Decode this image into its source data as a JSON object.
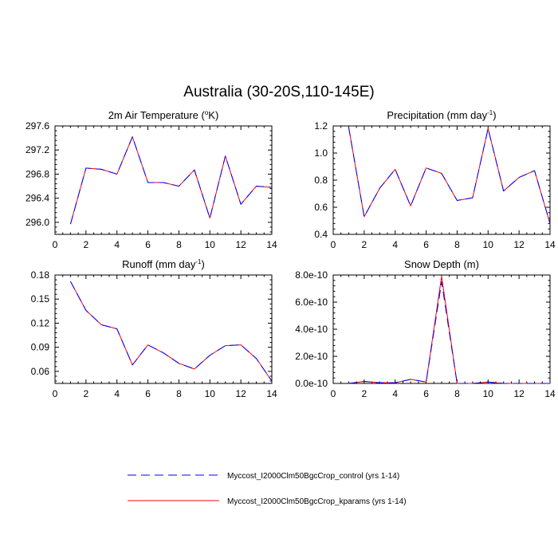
{
  "figure": {
    "title": "Australia (30-20S,110-145E)",
    "legend": [
      {
        "label": "Myccost_I2000Clm50BgcCrop_control (yrs 1-14)",
        "color": "#0000ff",
        "dash": "dashed"
      },
      {
        "label": "Myccost_I2000Clm50BgcCrop_kparams (yrs 1-14)",
        "color": "#ff0000",
        "dash": "solid"
      }
    ]
  },
  "chart_data": [
    {
      "type": "line",
      "title": "2m Air Temperature (",
      "title_sup": "o",
      "title_post": "K)",
      "xlim": [
        0,
        14
      ],
      "ylim": [
        295.8,
        297.6
      ],
      "xticks": [
        "0",
        "2",
        "4",
        "6",
        "8",
        "10",
        "12",
        "14"
      ],
      "yticks": [
        "296.0",
        "296.4",
        "296.8",
        "297.2",
        "297.6"
      ],
      "x": [
        1,
        2,
        3,
        4,
        5,
        6,
        7,
        8,
        9,
        10,
        11,
        12,
        13,
        14
      ],
      "series": [
        {
          "name": "Myccost_I2000Clm50BgcCrop_control (yrs 1-14)",
          "values": [
            295.97,
            296.9,
            296.88,
            296.8,
            297.42,
            296.66,
            296.66,
            296.6,
            296.87,
            296.07,
            297.1,
            296.3,
            296.6,
            296.58
          ]
        },
        {
          "name": "Myccost_I2000Clm50BgcCrop_kparams (yrs 1-14)",
          "values": [
            295.97,
            296.9,
            296.88,
            296.8,
            297.42,
            296.66,
            296.66,
            296.6,
            296.87,
            296.07,
            297.1,
            296.3,
            296.6,
            296.58
          ]
        }
      ]
    },
    {
      "type": "line",
      "title": "Precipitation (mm day",
      "title_sup": "-1",
      "title_post": ")",
      "xlim": [
        0,
        14
      ],
      "ylim": [
        0.4,
        1.2
      ],
      "xticks": [
        "0",
        "2",
        "4",
        "6",
        "8",
        "10",
        "12",
        "14"
      ],
      "yticks": [
        "0.4",
        "0.6",
        "0.8",
        "1.0",
        "1.2"
      ],
      "x": [
        1,
        2,
        3,
        4,
        5,
        6,
        7,
        8,
        9,
        10,
        11,
        12,
        13,
        14
      ],
      "series": [
        {
          "name": "Myccost_I2000Clm50BgcCrop_control (yrs 1-14)",
          "values": [
            1.19,
            0.53,
            0.74,
            0.88,
            0.61,
            0.89,
            0.85,
            0.65,
            0.67,
            1.18,
            0.72,
            0.82,
            0.87,
            0.48
          ]
        },
        {
          "name": "Myccost_I2000Clm50BgcCrop_kparams (yrs 1-14)",
          "values": [
            1.19,
            0.53,
            0.74,
            0.88,
            0.61,
            0.89,
            0.85,
            0.65,
            0.67,
            1.18,
            0.72,
            0.82,
            0.87,
            0.48
          ]
        }
      ]
    },
    {
      "type": "line",
      "title": "Runoff (mm day",
      "title_sup": "-1",
      "title_post": ")",
      "xlim": [
        0,
        14
      ],
      "ylim": [
        0.045,
        0.18
      ],
      "xticks": [
        "0",
        "2",
        "4",
        "6",
        "8",
        "10",
        "12",
        "14"
      ],
      "yticks": [
        "0.06",
        "0.09",
        "0.12",
        "0.15",
        "0.18"
      ],
      "x": [
        1,
        2,
        3,
        4,
        5,
        6,
        7,
        8,
        9,
        10,
        11,
        12,
        13,
        14
      ],
      "series": [
        {
          "name": "Myccost_I2000Clm50BgcCrop_control (yrs 1-14)",
          "values": [
            0.172,
            0.136,
            0.118,
            0.113,
            0.068,
            0.093,
            0.083,
            0.07,
            0.063,
            0.08,
            0.092,
            0.093,
            0.076,
            0.048
          ]
        },
        {
          "name": "Myccost_I2000Clm50BgcCrop_kparams (yrs 1-14)",
          "values": [
            0.172,
            0.136,
            0.118,
            0.113,
            0.068,
            0.093,
            0.083,
            0.07,
            0.063,
            0.08,
            0.092,
            0.093,
            0.076,
            0.048
          ]
        }
      ]
    },
    {
      "type": "line",
      "title": "Snow Depth (m)",
      "title_sup": "",
      "title_post": "",
      "xlim": [
        0,
        14
      ],
      "ylim": [
        0,
        8e-10
      ],
      "xticks": [
        "0",
        "2",
        "4",
        "6",
        "8",
        "10",
        "12",
        "14"
      ],
      "yticks": [
        "0.0e-10",
        "2.0e-10",
        "4.0e-10",
        "6.0e-10",
        "8.0e-10"
      ],
      "x": [
        1,
        2,
        3,
        4,
        5,
        6,
        7,
        8,
        9,
        10,
        11,
        12,
        13,
        14
      ],
      "series": [
        {
          "name": "Myccost_I2000Clm50BgcCrop_control (yrs 1-14)",
          "values": [
            0,
            1.5e-11,
            5e-12,
            5e-12,
            3e-11,
            1e-11,
            7.5e-10,
            0,
            0,
            1e-11,
            0,
            0,
            0,
            0
          ]
        },
        {
          "name": "Myccost_I2000Clm50BgcCrop_kparams (yrs 1-14)",
          "values": [
            0,
            1.5e-11,
            5e-12,
            5e-12,
            3e-11,
            1e-11,
            7.9e-10,
            0,
            0,
            1e-11,
            0,
            0,
            0,
            0
          ]
        }
      ]
    }
  ]
}
